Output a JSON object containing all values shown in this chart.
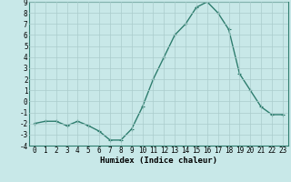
{
  "x": [
    0,
    1,
    2,
    3,
    4,
    5,
    6,
    7,
    8,
    9,
    10,
    11,
    12,
    13,
    14,
    15,
    16,
    17,
    18,
    19,
    20,
    21,
    22,
    23
  ],
  "y": [
    -2,
    -1.8,
    -1.8,
    -2.2,
    -1.8,
    -2.2,
    -2.7,
    -3.5,
    -3.5,
    -2.5,
    -0.5,
    2,
    4,
    6,
    7,
    8.5,
    9,
    8,
    6.5,
    2.5,
    1,
    -0.5,
    -1.2,
    -1.2
  ],
  "line_color": "#2e7d6e",
  "marker": "+",
  "marker_size": 3,
  "bg_color": "#c8e8e8",
  "grid_color": "#aacccc",
  "xlabel": "Humidex (Indice chaleur)",
  "ylim": [
    -4,
    9
  ],
  "xlim": [
    -0.5,
    23.5
  ],
  "yticks": [
    -4,
    -3,
    -2,
    -1,
    0,
    1,
    2,
    3,
    4,
    5,
    6,
    7,
    8,
    9
  ],
  "xticks": [
    0,
    1,
    2,
    3,
    4,
    5,
    6,
    7,
    8,
    9,
    10,
    11,
    12,
    13,
    14,
    15,
    16,
    17,
    18,
    19,
    20,
    21,
    22,
    23
  ],
  "label_fontsize": 6.5,
  "tick_fontsize": 5.5,
  "linewidth": 1.0,
  "marker_edge_width": 0.8
}
